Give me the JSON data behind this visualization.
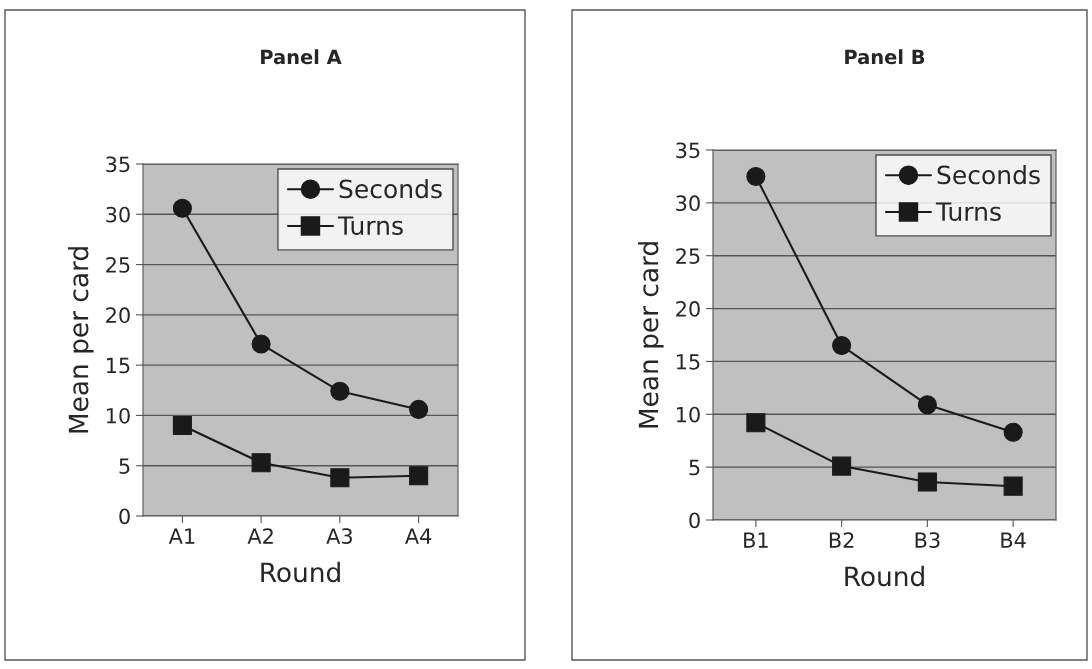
{
  "chart_data": [
    {
      "type": "line",
      "title": "Panel A",
      "xlabel": "Round",
      "ylabel": "Mean per card",
      "categories": [
        "A1",
        "A2",
        "A3",
        "A4"
      ],
      "series": [
        {
          "name": "Seconds",
          "color": "#1a1a1a",
          "marker": "circle",
          "values": [
            30.6,
            17.1,
            12.4,
            10.6
          ]
        },
        {
          "name": "Turns",
          "color": "#1a1a1a",
          "marker": "square",
          "values": [
            9.0,
            5.3,
            3.8,
            4.0
          ]
        }
      ],
      "ylim": [
        0,
        35
      ],
      "yticks": [
        0,
        5,
        10,
        15,
        20,
        25,
        30,
        35
      ],
      "grid": "y",
      "legend": "top right"
    },
    {
      "type": "line",
      "title": "Panel B",
      "xlabel": "Round",
      "ylabel": "Mean per card",
      "categories": [
        "B1",
        "B2",
        "B3",
        "B4"
      ],
      "series": [
        {
          "name": "Seconds",
          "color": "#1a1a1a",
          "marker": "circle",
          "values": [
            32.5,
            16.5,
            10.9,
            8.3
          ]
        },
        {
          "name": "Turns",
          "color": "#1a1a1a",
          "marker": "square",
          "values": [
            9.2,
            5.1,
            3.6,
            3.2
          ]
        }
      ],
      "ylim": [
        0,
        35
      ],
      "yticks": [
        0,
        5,
        10,
        15,
        20,
        25,
        30,
        35
      ],
      "grid": "y",
      "legend": "top right"
    }
  ]
}
